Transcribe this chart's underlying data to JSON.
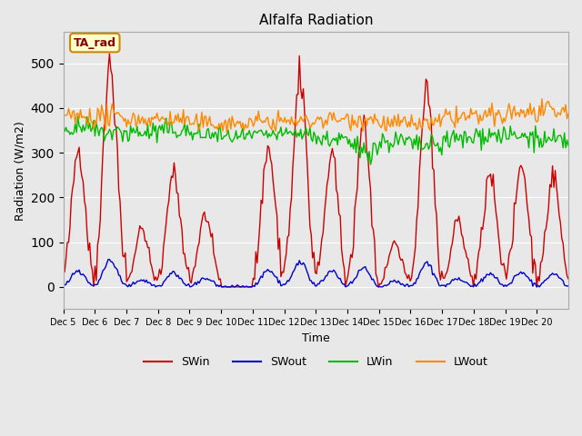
{
  "title": "Alfalfa Radiation",
  "xlabel": "Time",
  "ylabel": "Radiation (W/m2)",
  "ylim": [
    -50,
    570
  ],
  "background_color": "#e8e8e8",
  "plot_bg_color": "#e8e8e8",
  "legend_entries": [
    "SWin",
    "SWout",
    "LWin",
    "LWout"
  ],
  "legend_colors": [
    "#cc0000",
    "#0000cc",
    "#00bb00",
    "#ff8800"
  ],
  "annotation_text": "TA_rad",
  "annotation_bg": "#ffffcc",
  "annotation_border": "#cc8800",
  "annotation_text_color": "#880000",
  "x_tick_labels": [
    "Dec 5",
    "Dec 6",
    "Dec 7",
    "Dec 8",
    "Dec 9",
    "Dec 10",
    "Dec 11",
    "Dec 12",
    "Dec 13",
    "Dec 14",
    "Dec 15",
    "Dec 16",
    "Dec 17",
    "Dec 18",
    "Dec 19",
    "Dec 20"
  ],
  "n_points": 384,
  "peak_heights_SWin": [
    310,
    500,
    130,
    255,
    160,
    0,
    310,
    470,
    290,
    350,
    100,
    450,
    150,
    250,
    275,
    250
  ]
}
